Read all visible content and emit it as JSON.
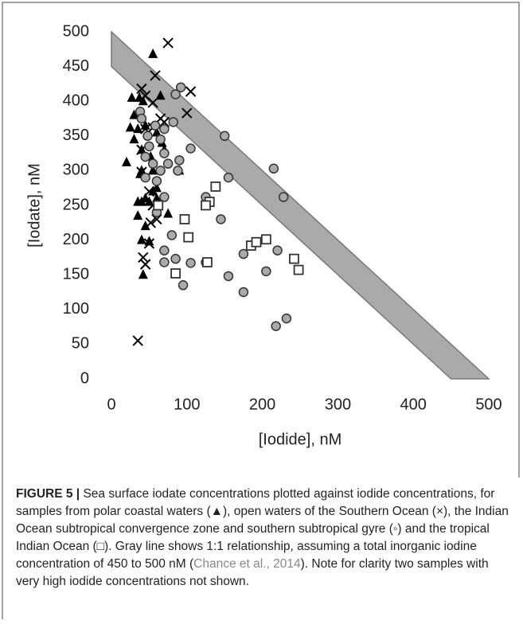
{
  "chart_data": {
    "type": "scatter",
    "xlabel": "[Iodide], nM",
    "ylabel": "[Iodate], nM",
    "xlim": [
      0,
      500
    ],
    "ylim": [
      0,
      500
    ],
    "xticks": [
      0,
      100,
      200,
      300,
      400,
      500
    ],
    "yticks": [
      0,
      50,
      100,
      150,
      200,
      250,
      300,
      350,
      400,
      450,
      500
    ],
    "band": [
      450,
      500
    ],
    "band_color": "#aaaaaa",
    "series": [
      {
        "marker": "triangle",
        "color": "#000000",
        "x": [
          55,
          27,
          37,
          42,
          65,
          30,
          25,
          35,
          45,
          30,
          40,
          52,
          60,
          67,
          70,
          40,
          55,
          90,
          20,
          38,
          45,
          55,
          50,
          35,
          60,
          75,
          35,
          45,
          40,
          50,
          42,
          60,
          40
        ],
        "values": [
          468,
          405,
          405,
          400,
          408,
          380,
          362,
          360,
          365,
          345,
          330,
          320,
          355,
          340,
          330,
          300,
          300,
          300,
          312,
          295,
          260,
          270,
          255,
          255,
          275,
          238,
          235,
          220,
          200,
          198,
          150,
          260,
          255
        ]
      },
      {
        "marker": "cross",
        "color": "#000000",
        "x": [
          75,
          58,
          40,
          45,
          105,
          100,
          55,
          65,
          45,
          55,
          40,
          40,
          50,
          55,
          52,
          60,
          50,
          42,
          45,
          35,
          70
        ],
        "values": [
          484,
          437,
          418,
          408,
          414,
          383,
          398,
          375,
          360,
          362,
          330,
          298,
          270,
          250,
          225,
          230,
          195,
          175,
          165,
          55,
          370
        ]
      },
      {
        "marker": "circle",
        "color": "#aaaaaa",
        "x": [
          38,
          92,
          85,
          40,
          82,
          58,
          70,
          48,
          50,
          65,
          45,
          70,
          55,
          75,
          65,
          88,
          90,
          45,
          60,
          70,
          105,
          150,
          155,
          215,
          228,
          145,
          80,
          70,
          85,
          70,
          95,
          105,
          125,
          155,
          175,
          175,
          205,
          220,
          218,
          232,
          125,
          60
        ],
        "values": [
          385,
          420,
          410,
          375,
          370,
          365,
          360,
          350,
          335,
          345,
          320,
          325,
          310,
          310,
          300,
          300,
          315,
          290,
          285,
          262,
          332,
          350,
          290,
          303,
          262,
          230,
          207,
          185,
          173,
          168,
          135,
          167,
          168,
          148,
          180,
          125,
          155,
          185,
          76,
          87,
          262,
          240
        ]
      },
      {
        "marker": "square",
        "color": "#ffffff",
        "x": [
          62,
          97,
          138,
          130,
          125,
          102,
          85,
          127,
          185,
          192,
          205,
          242,
          248
        ],
        "values": [
          250,
          230,
          277,
          255,
          250,
          204,
          152,
          168,
          192,
          197,
          201,
          173,
          157
        ]
      }
    ]
  },
  "caption": {
    "label": "FIGURE 5 |",
    "text": "Sea surface iodate concentrations plotted against iodide concentrations, for samples from polar coastal waters (▲), open waters of the Southern Ocean (×), the Indian Ocean subtropical convergence zone and southern subtropical gyre (◦) and the tropical Indian Ocean (□). Gray line shows 1:1 relationship, assuming a total inorganic iodine concentration of 450 to 500 nM (",
    "citation": "Chance et al., 2014",
    "text_after": "). Note for clarity two samples with very high iodide concentrations not shown."
  }
}
